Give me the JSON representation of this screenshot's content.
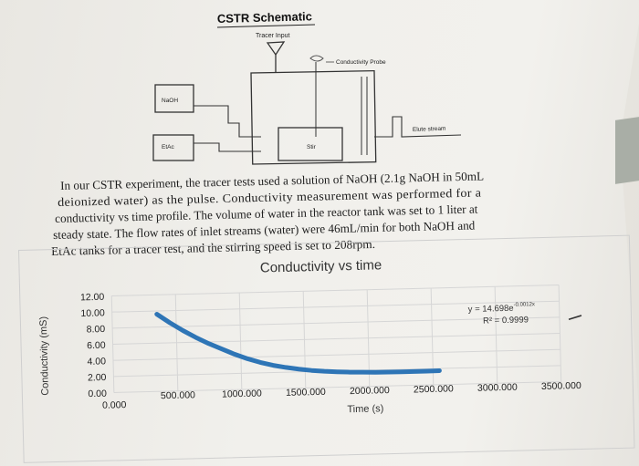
{
  "schematic": {
    "title": "CSTR Schematic",
    "tracer_input": "Tracer Input",
    "conductivity_probe": "Conductivity Probe",
    "naoh_tank": "NaOH",
    "etac_tank": "EtAc",
    "stir": "Stir",
    "elute_stream": "Elute stream"
  },
  "description": {
    "lines": [
      "In our CSTR experiment, the tracer tests used a solution of NaOH (2.1g NaOH in 50mL",
      "deionized water) as the pulse. Conductivity measurement was performed for a",
      "conductivity vs time profile. The volume of water in the reactor tank was set to 1 liter at",
      "steady state. The flow rates of inlet streams (water) were 46mL/min for both NaOH and",
      "EtAc tanks for a tracer test, and the stirring speed is set to 208rpm."
    ]
  },
  "chart_data": {
    "type": "line",
    "title": "Conductivity vs time",
    "xlabel": "Time (s)",
    "ylabel": "Conductivity (mS)",
    "xlim": [
      0,
      3500
    ],
    "ylim": [
      0,
      12
    ],
    "x_ticks": [
      "0.000",
      "500.000",
      "1000.000",
      "1500.000",
      "2000.000",
      "2500.000",
      "3000.000",
      "3500.000"
    ],
    "y_ticks": [
      "0.00",
      "2.00",
      "4.00",
      "6.00",
      "8.00",
      "10.00",
      "12.00"
    ],
    "grid": true,
    "equation": "y = 14.698e",
    "equation_exponent": "-0.0012x",
    "r_squared": "R² = 0.9999",
    "series": [
      {
        "color": "#2e75b6",
        "x": [
          350,
          450,
          550,
          650,
          750,
          850,
          950,
          1050,
          1150,
          1250,
          1350,
          1450,
          1550,
          1650,
          1750,
          1850,
          1950,
          2050,
          2150,
          2250,
          2350,
          2450,
          2550
        ],
        "y": [
          9.6,
          8.5,
          7.5,
          6.6,
          5.8,
          5.1,
          4.4,
          3.8,
          3.3,
          2.9,
          2.6,
          2.35,
          2.15,
          2.0,
          1.9,
          1.82,
          1.77,
          1.73,
          1.71,
          1.7,
          1.7,
          1.71,
          1.73
        ]
      }
    ]
  }
}
